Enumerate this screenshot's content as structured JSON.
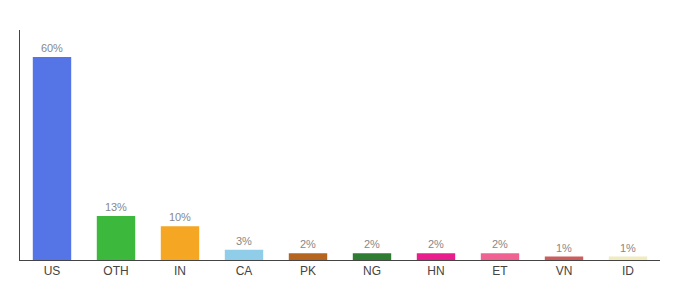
{
  "chart_data": {
    "type": "bar",
    "categories": [
      "US",
      "OTH",
      "IN",
      "CA",
      "PK",
      "NG",
      "HN",
      "ET",
      "VN",
      "ID"
    ],
    "values": [
      60,
      13,
      10,
      3,
      2,
      2,
      2,
      2,
      1,
      1
    ],
    "value_labels": [
      "60%",
      "13%",
      "10%",
      "3%",
      "2%",
      "2%",
      "2%",
      "2%",
      "1%",
      "1%"
    ],
    "colors": [
      "#5575e7",
      "#3cb83c",
      "#f5a623",
      "#90cde8",
      "#b5651d",
      "#2e7d32",
      "#e91e8c",
      "#f06292",
      "#cd5c5c",
      "#f0ecc0"
    ],
    "ylim": [
      0,
      68
    ],
    "grid": false,
    "data_labels": true,
    "tick_labels": "x"
  }
}
